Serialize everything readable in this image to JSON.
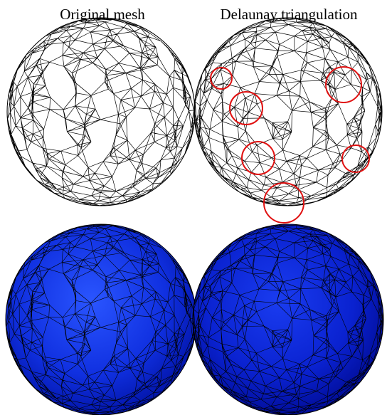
{
  "captions": {
    "left": "Original mesh",
    "right": "Delaunay triangulation"
  }
}
